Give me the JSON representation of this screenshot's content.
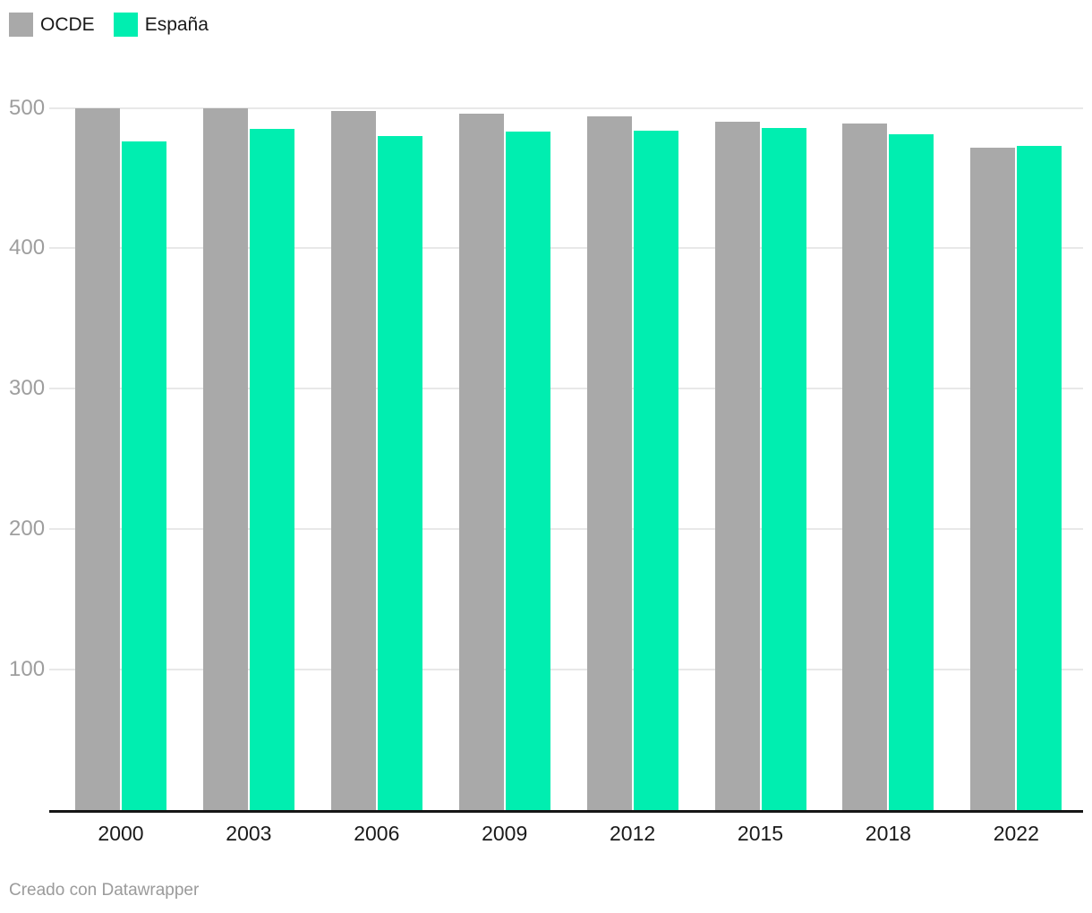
{
  "legend": {
    "items": [
      {
        "label": "OCDE",
        "color": "#a9a9a9"
      },
      {
        "label": "España",
        "color": "#00eeb0"
      }
    ]
  },
  "footer": {
    "text": "Creado con Datawrapper"
  },
  "chart_data": {
    "type": "bar",
    "categories": [
      "2000",
      "2003",
      "2006",
      "2009",
      "2012",
      "2015",
      "2018",
      "2022"
    ],
    "series": [
      {
        "name": "OCDE",
        "color": "#a9a9a9",
        "values": [
          500,
          500,
          498,
          496,
          494,
          490,
          489,
          472
        ]
      },
      {
        "name": "España",
        "color": "#00eeb0",
        "values": [
          476,
          485,
          480,
          483,
          484,
          486,
          481,
          473
        ]
      }
    ],
    "title": "",
    "xlabel": "",
    "ylabel": "",
    "ylim": [
      0,
      500
    ],
    "yticks": [
      100,
      200,
      300,
      400,
      500
    ],
    "grid": true,
    "legend_position": "top-left"
  }
}
